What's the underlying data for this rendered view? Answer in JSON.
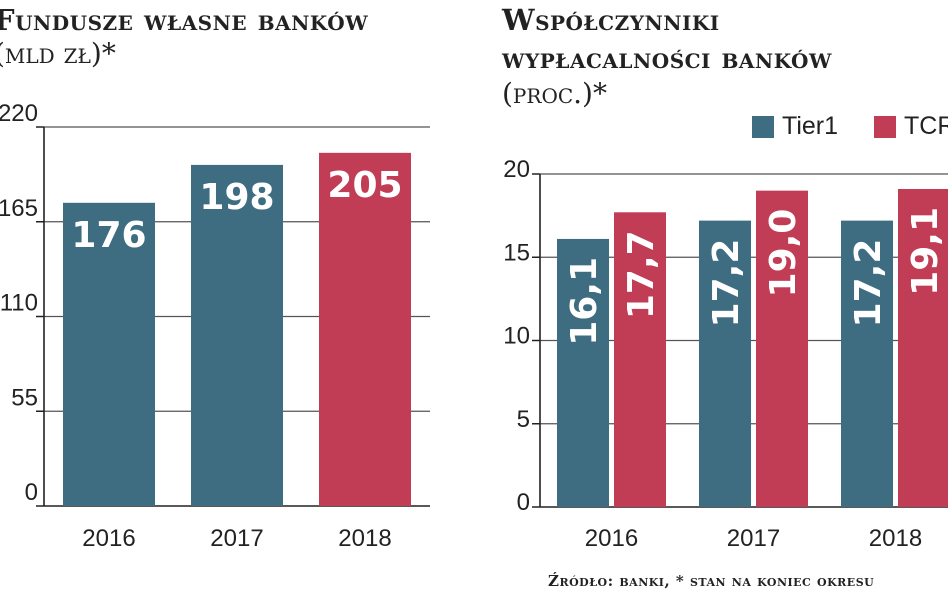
{
  "colors": {
    "tier1": "#3e6d82",
    "tcr": "#c13c55",
    "axis": "#222222",
    "grid": "#555555"
  },
  "source": "Źródło: banki, * stan na koniec okresu",
  "chart_data": [
    {
      "type": "bar",
      "title": "Fundusze własne banków",
      "subtitle": "(mld zł)*",
      "categories": [
        "2016",
        "2017",
        "2018"
      ],
      "values": [
        176,
        198,
        205
      ],
      "value_labels": [
        "176",
        "198",
        "205"
      ],
      "bar_colors": [
        "#3e6d82",
        "#3e6d82",
        "#c13c55"
      ],
      "yticks": [
        "0",
        "55",
        "110",
        "165",
        "220"
      ],
      "ylim": [
        0,
        220
      ],
      "grid": true,
      "xlabel": "",
      "ylabel": ""
    },
    {
      "type": "bar",
      "title_line1": "Współczynniki",
      "title_line2": "wypłacalności banków",
      "subtitle": "(proc.)*",
      "categories": [
        "2016",
        "2017",
        "2018"
      ],
      "series": [
        {
          "name": "Tier1",
          "values": [
            16.1,
            17.2,
            17.2
          ],
          "labels": [
            "16,1",
            "17,2",
            "17,2"
          ]
        },
        {
          "name": "TCR",
          "values": [
            17.7,
            19.0,
            19.1
          ],
          "labels": [
            "17,7",
            "19,0",
            "19,1"
          ]
        }
      ],
      "yticks": [
        "0",
        "5",
        "10",
        "15",
        "20"
      ],
      "ylim": [
        0,
        20
      ],
      "grid": true,
      "legend": "top-right",
      "xlabel": "",
      "ylabel": ""
    }
  ]
}
